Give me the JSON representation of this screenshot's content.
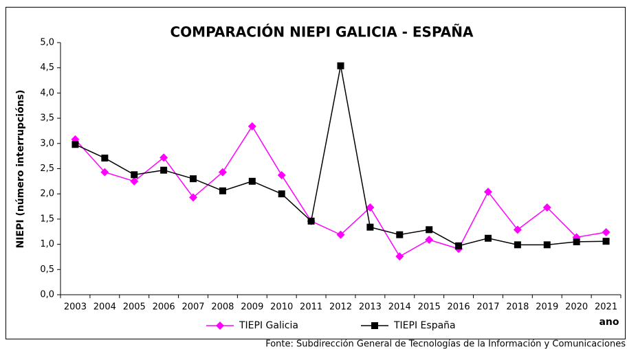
{
  "chart_data": {
    "type": "line",
    "title": "COMPARACIÓN NIEPI GALICIA - ESPAÑA",
    "y_label": "NIEPI (número interrupcións)",
    "x_label": "ano",
    "source": "Fonte: Subdirección General de Tecnologías de la Información y Comunicaciones",
    "categories": [
      "2003",
      "2004",
      "2005",
      "2006",
      "2007",
      "2008",
      "2009",
      "2010",
      "2011",
      "2012",
      "2013",
      "2014",
      "2015",
      "2016",
      "2017",
      "2018",
      "2019",
      "2020",
      "2021"
    ],
    "series": [
      {
        "name": "TIEPI Galicia",
        "color": "#ff00ff",
        "marker": "diamond",
        "values": [
          3.08,
          2.43,
          2.25,
          2.72,
          1.93,
          2.43,
          3.34,
          2.37,
          1.46,
          1.19,
          1.73,
          0.76,
          1.09,
          0.91,
          2.04,
          1.29,
          1.73,
          1.14,
          1.24
        ]
      },
      {
        "name": "TIEPI España",
        "color": "#000000",
        "marker": "square",
        "values": [
          2.98,
          2.71,
          2.38,
          2.47,
          2.3,
          2.06,
          2.25,
          2.0,
          1.46,
          4.54,
          1.34,
          1.19,
          1.29,
          0.97,
          1.12,
          0.99,
          0.99,
          1.05,
          1.06
        ]
      }
    ],
    "ylim": [
      0,
      5
    ],
    "yticks": [
      {
        "value": 0,
        "label": "0,0"
      },
      {
        "value": 0.5,
        "label": "0,5"
      },
      {
        "value": 1,
        "label": "1,0"
      },
      {
        "value": 1.5,
        "label": "1,5"
      },
      {
        "value": 2,
        "label": "2,0"
      },
      {
        "value": 2.5,
        "label": "2,5"
      },
      {
        "value": 3,
        "label": "3,0"
      },
      {
        "value": 3.5,
        "label": "3,5"
      },
      {
        "value": 4,
        "label": "4,0"
      },
      {
        "value": 4.5,
        "label": "4,5"
      },
      {
        "value": 5,
        "label": "5,0"
      }
    ],
    "grid": false
  }
}
